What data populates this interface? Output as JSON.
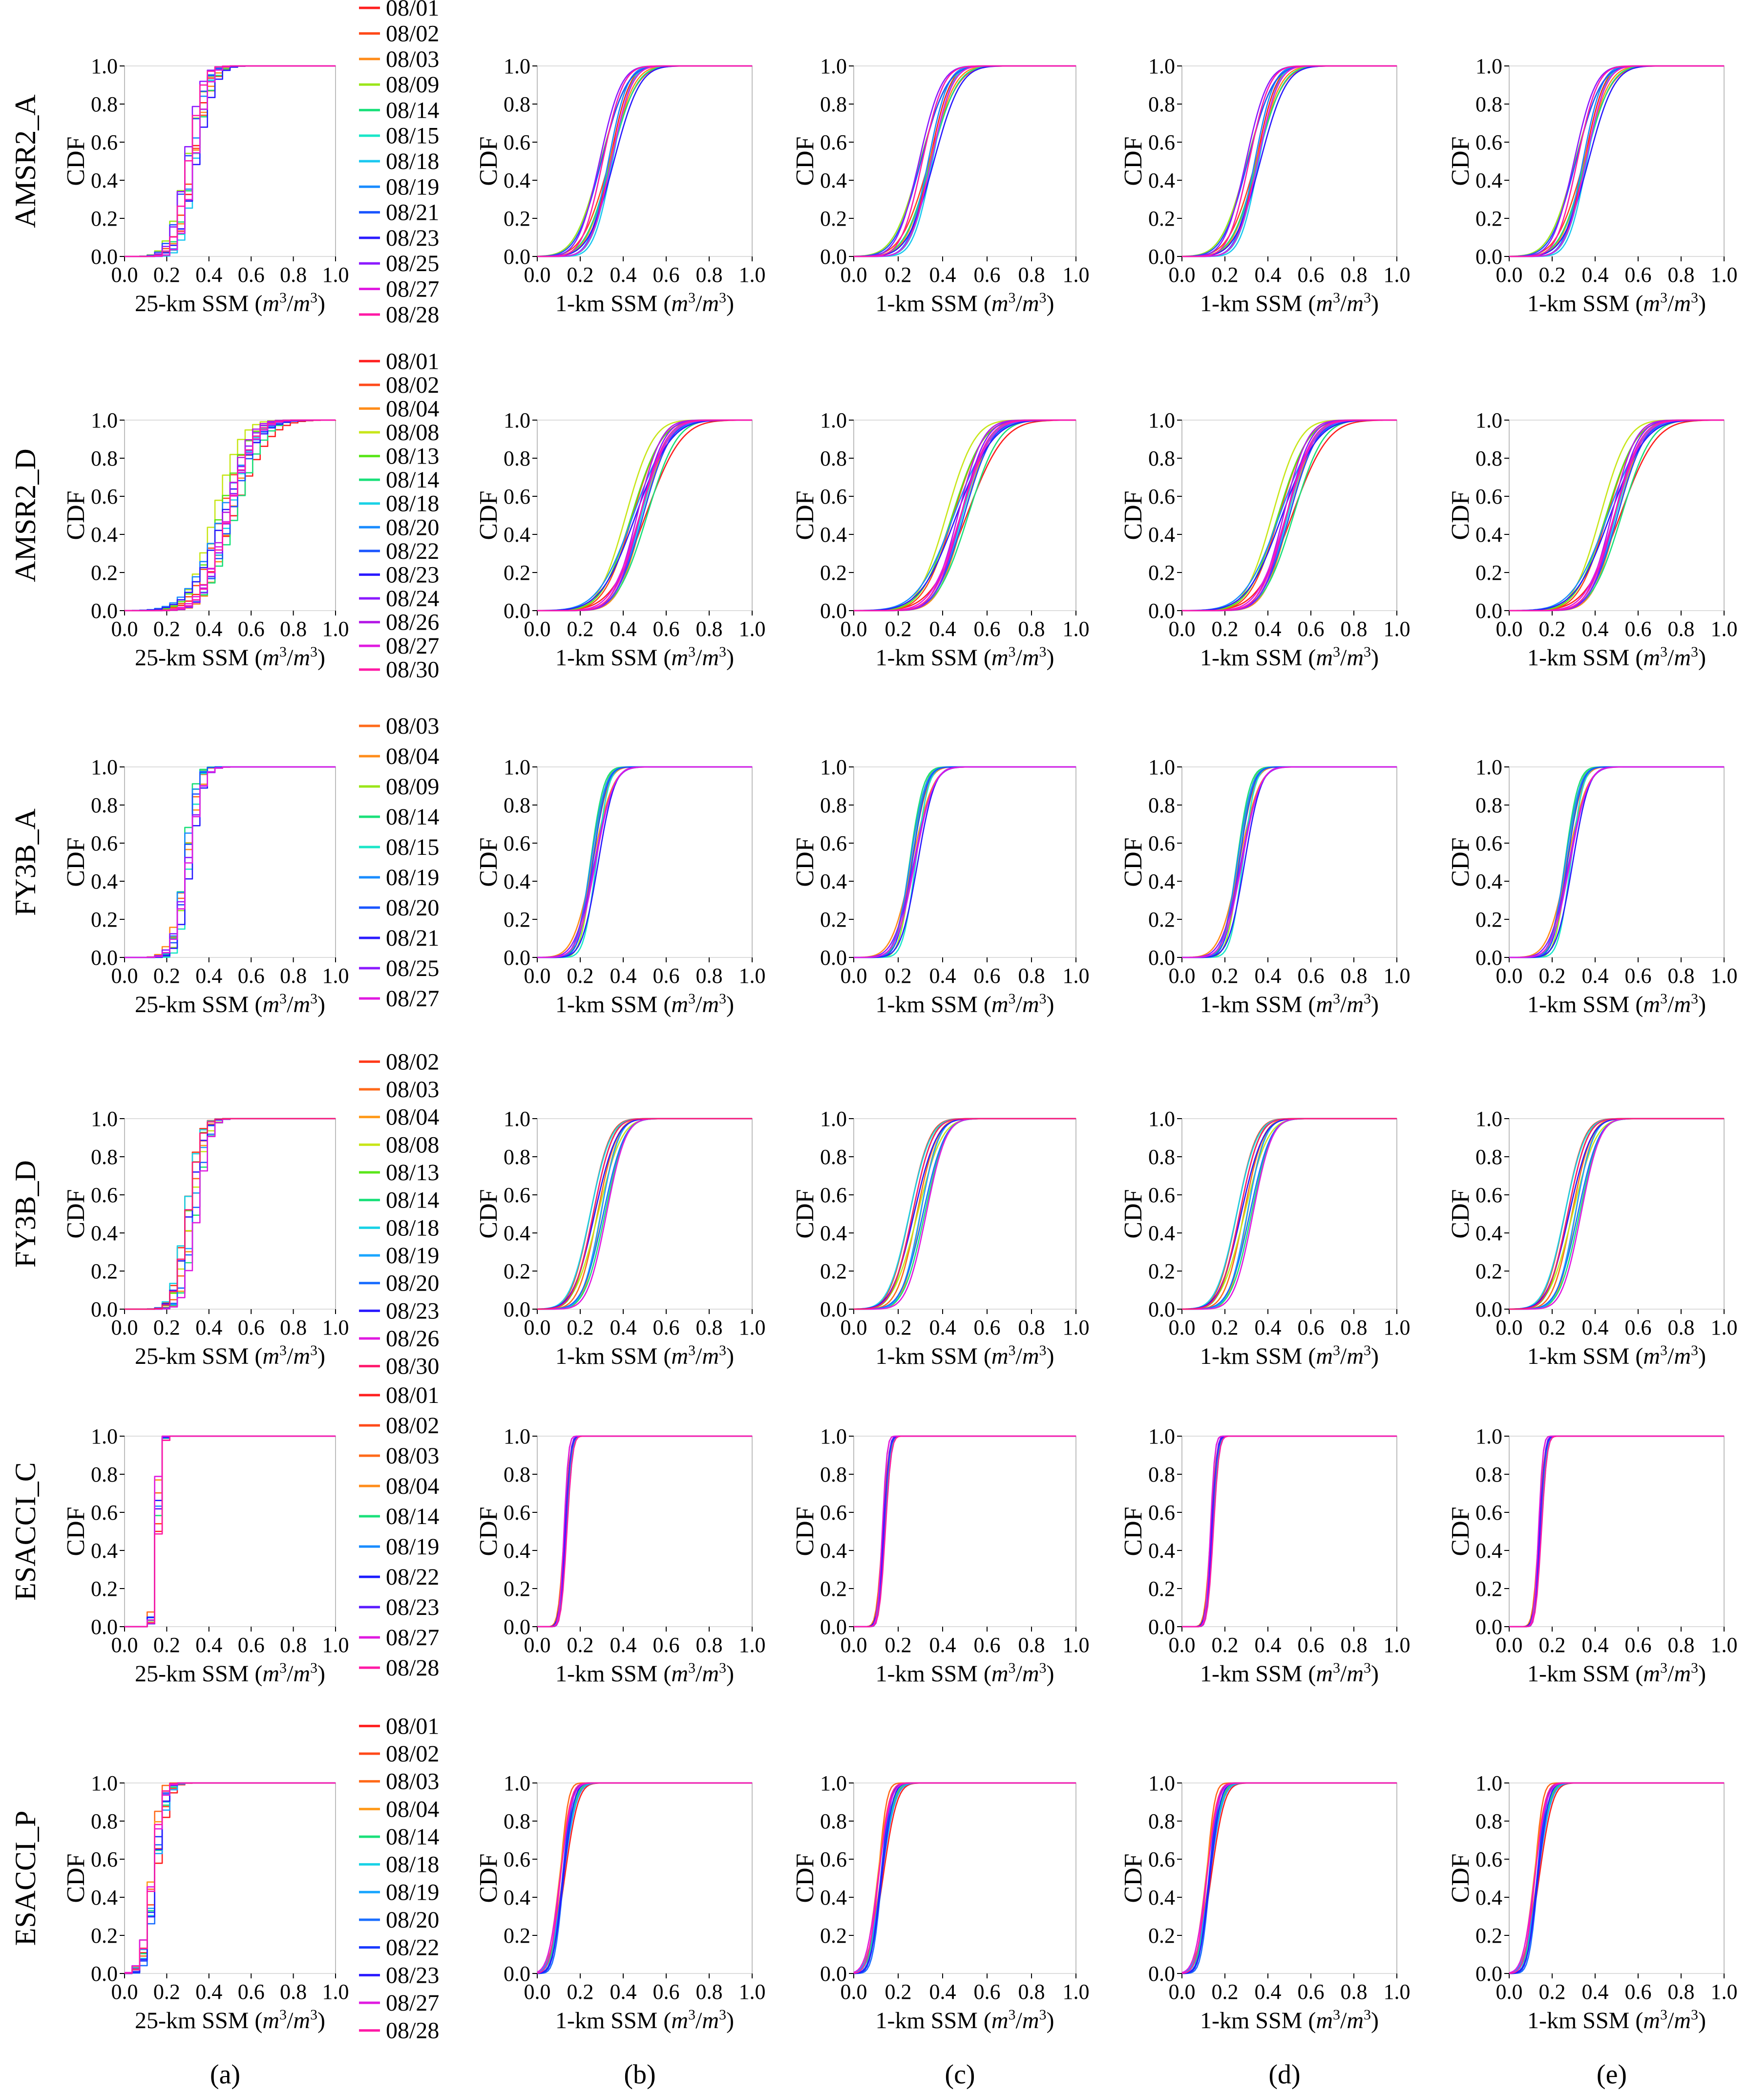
{
  "chart_data": {
    "type": "line",
    "ylabel": "CDF",
    "xlabel_a": "25-km SSM",
    "xlabel_other": "1-km SSM",
    "unit_num": "m",
    "unit_den": "m",
    "unit_exp": "3",
    "xlim": [
      0.0,
      1.0
    ],
    "ylim": [
      0.0,
      1.0
    ],
    "xticks": [
      "0.0",
      "0.2",
      "0.4",
      "0.6",
      "0.8",
      "1.0"
    ],
    "yticks": [
      "0.0",
      "0.2",
      "0.4",
      "0.6",
      "0.8",
      "1.0"
    ],
    "columns": [
      "(a)",
      "(b)",
      "(c)",
      "(d)",
      "(e)"
    ],
    "grid": false,
    "legend_placement": "right of column (a)",
    "rows": [
      {
        "product": "AMSR2_A",
        "dates": [
          "08/01",
          "08/02",
          "08/03",
          "08/09",
          "08/14",
          "08/15",
          "08/18",
          "08/19",
          "08/21",
          "08/23",
          "08/25",
          "08/27",
          "08/28"
        ],
        "colors": [
          "#ff1f1f",
          "#ff4a1a",
          "#ff8c1a",
          "#9be61a",
          "#1ae07a",
          "#1ae6c8",
          "#1ac8f0",
          "#1a8cff",
          "#1a55ff",
          "#2a1aff",
          "#8c1aff",
          "#e01ae0",
          "#ff1aa6"
        ],
        "median_a": 0.3,
        "spread_a": 0.06,
        "median_1km": 0.33,
        "spread_1km": 0.08
      },
      {
        "product": "AMSR2_D",
        "dates": [
          "08/01",
          "08/02",
          "08/04",
          "08/08",
          "08/13",
          "08/14",
          "08/18",
          "08/20",
          "08/22",
          "08/23",
          "08/24",
          "08/26",
          "08/27",
          "08/30"
        ],
        "colors": [
          "#ff1f1f",
          "#ff4a1a",
          "#ff8c1a",
          "#c8e61a",
          "#5ae61a",
          "#1ae07a",
          "#1ad2e6",
          "#1a8cff",
          "#1a55ff",
          "#2a1aff",
          "#8c1aff",
          "#b41ae6",
          "#e01ae0",
          "#ff1aa6"
        ],
        "median_a": 0.45,
        "spread_a": 0.11,
        "median_1km": 0.46,
        "spread_1km": 0.11
      },
      {
        "product": "FY3B_A",
        "dates": [
          "08/03",
          "08/04",
          "08/09",
          "08/14",
          "08/15",
          "08/19",
          "08/20",
          "08/21",
          "08/25",
          "08/27"
        ],
        "colors": [
          "#ff6a1a",
          "#ff8c1a",
          "#9be61a",
          "#1ae07a",
          "#1ae6c8",
          "#1a8cff",
          "#1a55ff",
          "#2a1aff",
          "#8c1aff",
          "#e01ae0"
        ],
        "median_a": 0.28,
        "spread_a": 0.05,
        "median_1km": 0.27,
        "spread_1km": 0.06
      },
      {
        "product": "FY3B_D",
        "dates": [
          "08/02",
          "08/03",
          "08/04",
          "08/08",
          "08/13",
          "08/14",
          "08/18",
          "08/19",
          "08/20",
          "08/23",
          "08/26",
          "08/30"
        ],
        "colors": [
          "#ff3a1a",
          "#ff6a1a",
          "#ff9a1a",
          "#c8e61a",
          "#5ae61a",
          "#1ae07a",
          "#1ad2e6",
          "#1aa6ff",
          "#1a6eff",
          "#2a1aff",
          "#e01ae0",
          "#ff1a6e"
        ],
        "median_a": 0.3,
        "spread_a": 0.05,
        "median_1km": 0.29,
        "spread_1km": 0.07
      },
      {
        "product": "ESACCI_C",
        "dates": [
          "08/01",
          "08/02",
          "08/03",
          "08/04",
          "08/14",
          "08/19",
          "08/22",
          "08/23",
          "08/27",
          "08/28"
        ],
        "colors": [
          "#ff1f1f",
          "#ff4a1a",
          "#ff6a1a",
          "#ff8c1a",
          "#1ae07a",
          "#1a8cff",
          "#1a1aff",
          "#5a1aff",
          "#e01ae0",
          "#ff1aa6"
        ],
        "median_a": 0.14,
        "spread_a": 0.015,
        "median_1km": 0.14,
        "spread_1km": 0.018
      },
      {
        "product": "ESACCI_P",
        "dates": [
          "08/01",
          "08/02",
          "08/03",
          "08/04",
          "08/14",
          "08/18",
          "08/19",
          "08/20",
          "08/22",
          "08/23",
          "08/27",
          "08/28"
        ],
        "colors": [
          "#ff1f1f",
          "#ff4a1a",
          "#ff6a1a",
          "#ff9a1a",
          "#1ae07a",
          "#1ad2e6",
          "#1aa6ff",
          "#1a6eff",
          "#1a3aff",
          "#2a1aff",
          "#e01ae0",
          "#ff1aa6"
        ],
        "median_a": 0.12,
        "spread_a": 0.04,
        "median_1km": 0.12,
        "spread_1km": 0.04
      }
    ]
  }
}
